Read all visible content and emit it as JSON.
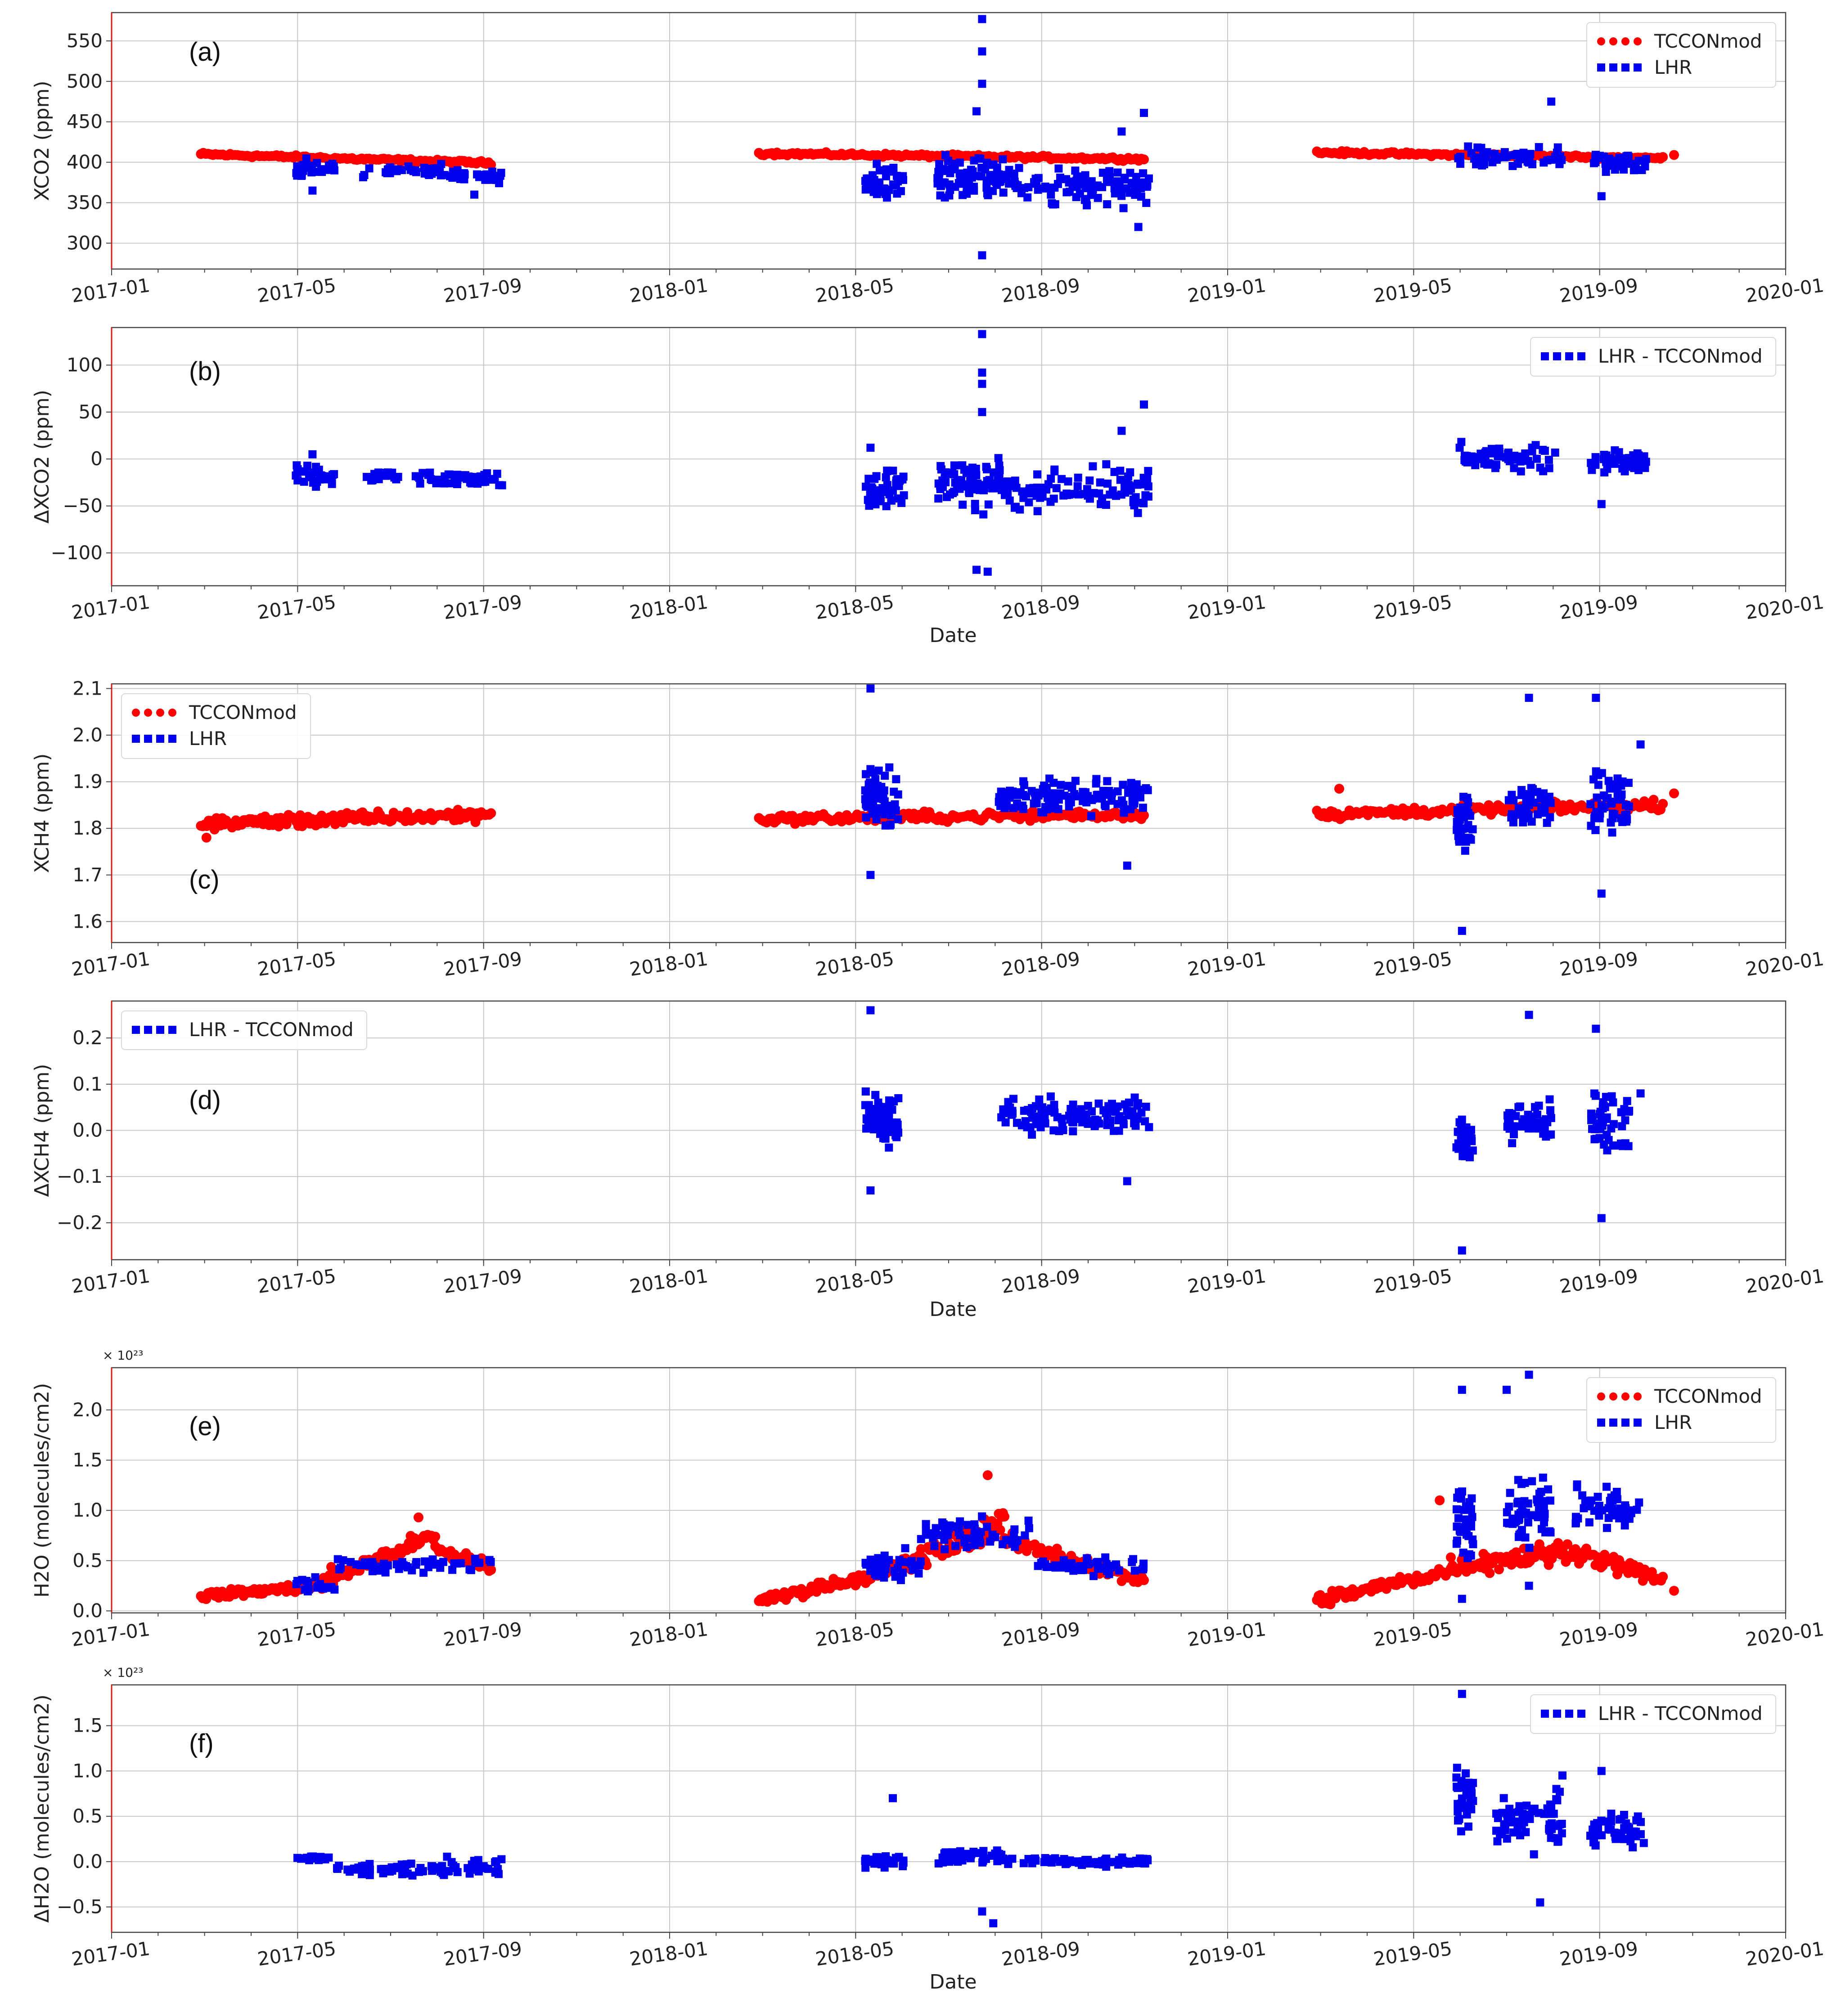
{
  "figure": {
    "colors": {
      "tccon": "#ff0000",
      "lhr": "#0000ee",
      "grid": "#c8c8c8",
      "axis": "#444444",
      "leftSpine": "#cc2222"
    },
    "x_ticks": [
      "2017-01",
      "2017-05",
      "2017-09",
      "2018-01",
      "2018-05",
      "2018-09",
      "2019-01",
      "2019-05",
      "2019-09",
      "2020-01"
    ],
    "x_axis_label": "Date"
  },
  "chart_data": [
    {
      "id": "a",
      "type": "scatter",
      "tag": "(a)",
      "ylabel": "XCO2 (ppm)",
      "ylim": [
        268,
        585
      ],
      "yticks": [
        300,
        350,
        400,
        450,
        500,
        550
      ],
      "ytick_labels": [
        "300",
        "350",
        "400",
        "450",
        "500",
        "550"
      ],
      "xlabel": "",
      "multiplier": "",
      "legend_position": "top-right",
      "series": [
        {
          "name": "TCCONmod",
          "marker": "circle",
          "color": "#ff0000",
          "segments": [
            {
              "start": 2017.16,
              "end": 2017.68,
              "y0": 410,
              "y1": 399,
              "jitter": 3,
              "count": 120
            },
            {
              "start": 2018.16,
              "end": 2018.85,
              "y0": 411,
              "y1": 404,
              "jitter": 3,
              "count": 150
            },
            {
              "start": 2019.16,
              "end": 2019.78,
              "y0": 412,
              "y1": 405,
              "jitter": 3,
              "count": 140
            }
          ],
          "points": [
            [
              2019.8,
              409
            ]
          ]
        },
        {
          "name": "LHR",
          "marker": "square",
          "color": "#0000ee",
          "clusters": [
            {
              "x0": 2017.33,
              "x1": 2017.4,
              "center": 392,
              "spread": 16,
              "count": 30
            },
            {
              "x0": 2017.45,
              "x1": 2017.62,
              "center": 389,
              "spread": 11,
              "count": 40
            },
            {
              "x0": 2017.6,
              "x1": 2017.7,
              "center": 383,
              "spread": 12,
              "count": 30
            },
            {
              "x0": 2018.35,
              "x1": 2018.42,
              "center": 375,
              "spread": 30,
              "count": 45
            },
            {
              "x0": 2018.48,
              "x1": 2018.6,
              "center": 380,
              "spread": 40,
              "count": 80
            },
            {
              "x0": 2018.6,
              "x1": 2018.86,
              "center": 370,
              "spread": 32,
              "count": 100
            },
            {
              "x0": 2019.41,
              "x1": 2019.6,
              "center": 405,
              "spread": 18,
              "count": 60
            },
            {
              "x0": 2019.65,
              "x1": 2019.75,
              "center": 400,
              "spread": 18,
              "count": 40
            }
          ],
          "points": [
            [
              2018.56,
              577
            ],
            [
              2018.56,
              537
            ],
            [
              2018.56,
              497
            ],
            [
              2018.55,
              463
            ],
            [
              2018.56,
              285
            ],
            [
              2018.85,
              461
            ],
            [
              2018.84,
              320
            ],
            [
              2018.81,
              438
            ],
            [
              2019.58,
              475
            ],
            [
              2019.67,
              358
            ],
            [
              2017.36,
              365
            ],
            [
              2017.65,
              360
            ]
          ]
        }
      ]
    },
    {
      "id": "b",
      "type": "scatter",
      "tag": "(b)",
      "ylabel": "ΔXCO2 (ppm)",
      "ylim": [
        -135,
        140
      ],
      "yticks": [
        -100,
        -50,
        0,
        50,
        100
      ],
      "ytick_labels": [
        "−100",
        "−50",
        "0",
        "50",
        "100"
      ],
      "xlabel": "Date",
      "multiplier": "",
      "legend_position": "top-right",
      "series": [
        {
          "name": "LHR - TCCONmod",
          "marker": "square",
          "color": "#0000ee",
          "clusters": [
            {
              "x0": 2017.33,
              "x1": 2017.4,
              "center": -18,
              "spread": 16,
              "count": 30
            },
            {
              "x0": 2017.45,
              "x1": 2017.62,
              "center": -18,
              "spread": 11,
              "count": 40
            },
            {
              "x0": 2017.6,
              "x1": 2017.7,
              "center": -22,
              "spread": 10,
              "count": 30
            },
            {
              "x0": 2018.35,
              "x1": 2018.42,
              "center": -33,
              "spread": 28,
              "count": 45
            },
            {
              "x0": 2018.48,
              "x1": 2018.6,
              "center": -25,
              "spread": 38,
              "count": 80
            },
            {
              "x0": 2018.6,
              "x1": 2018.86,
              "center": -32,
              "spread": 30,
              "count": 100
            },
            {
              "x0": 2019.41,
              "x1": 2019.6,
              "center": 2,
              "spread": 18,
              "count": 60
            },
            {
              "x0": 2019.65,
              "x1": 2019.75,
              "center": -3,
              "spread": 20,
              "count": 40
            }
          ],
          "points": [
            [
              2018.56,
              133
            ],
            [
              2018.56,
              92
            ],
            [
              2018.56,
              80
            ],
            [
              2018.56,
              50
            ],
            [
              2018.55,
              -118
            ],
            [
              2018.57,
              -120
            ],
            [
              2018.85,
              58
            ],
            [
              2018.81,
              30
            ],
            [
              2019.67,
              -48
            ],
            [
              2018.36,
              12
            ],
            [
              2017.36,
              5
            ]
          ]
        }
      ]
    },
    {
      "id": "c",
      "type": "scatter",
      "tag": "(c)",
      "ylabel": "XCH4 (ppm)",
      "ylim": [
        1.555,
        2.11
      ],
      "yticks": [
        1.6,
        1.7,
        1.8,
        1.9,
        2.0,
        2.1
      ],
      "ytick_labels": [
        "1.6",
        "1.7",
        "1.8",
        "1.9",
        "2.0",
        "2.1"
      ],
      "xlabel": "",
      "multiplier": "",
      "legend_position": "top-left",
      "series": [
        {
          "name": "TCCONmod",
          "marker": "circle",
          "color": "#ff0000",
          "segments": [
            {
              "start": 2017.16,
              "end": 2017.68,
              "y0": 1.81,
              "y1": 1.83,
              "jitter": 0.02,
              "count": 150
            },
            {
              "start": 2018.16,
              "end": 2018.85,
              "y0": 1.82,
              "y1": 1.83,
              "jitter": 0.015,
              "count": 150
            },
            {
              "start": 2019.16,
              "end": 2019.78,
              "y0": 1.83,
              "y1": 1.85,
              "jitter": 0.015,
              "count": 150
            }
          ],
          "points": [
            [
              2019.8,
              1.875
            ],
            [
              2017.17,
              1.78
            ],
            [
              2019.2,
              1.885
            ]
          ]
        },
        {
          "name": "LHR",
          "marker": "square",
          "color": "#0000ee",
          "clusters": [
            {
              "x0": 2018.35,
              "x1": 2018.41,
              "center": 1.86,
              "spread": 0.09,
              "count": 70
            },
            {
              "x0": 2018.59,
              "x1": 2018.86,
              "center": 1.87,
              "spread": 0.05,
              "count": 120
            },
            {
              "x0": 2019.41,
              "x1": 2019.44,
              "center": 1.82,
              "spread": 0.1,
              "count": 35
            },
            {
              "x0": 2019.5,
              "x1": 2019.58,
              "center": 1.85,
              "spread": 0.07,
              "count": 45
            },
            {
              "x0": 2019.65,
              "x1": 2019.72,
              "center": 1.86,
              "spread": 0.09,
              "count": 50
            }
          ],
          "points": [
            [
              2018.36,
              2.1
            ],
            [
              2018.36,
              1.7
            ],
            [
              2019.42,
              1.58
            ],
            [
              2019.54,
              2.08
            ],
            [
              2019.66,
              2.08
            ],
            [
              2019.67,
              1.66
            ],
            [
              2018.82,
              1.72
            ],
            [
              2019.74,
              1.98
            ]
          ]
        }
      ]
    },
    {
      "id": "d",
      "type": "scatter",
      "tag": "(d)",
      "ylabel": "ΔXCH4 (ppm)",
      "ylim": [
        -0.28,
        0.28
      ],
      "yticks": [
        -0.2,
        -0.1,
        0.0,
        0.1,
        0.2
      ],
      "ytick_labels": [
        "−0.2",
        "−0.1",
        "0.0",
        "0.1",
        "0.2"
      ],
      "xlabel": "Date",
      "multiplier": "",
      "legend_position": "top-left",
      "series": [
        {
          "name": "LHR - TCCONmod",
          "marker": "square",
          "color": "#0000ee",
          "clusters": [
            {
              "x0": 2018.35,
              "x1": 2018.41,
              "center": 0.02,
              "spread": 0.08,
              "count": 70
            },
            {
              "x0": 2018.59,
              "x1": 2018.86,
              "center": 0.03,
              "spread": 0.05,
              "count": 120
            },
            {
              "x0": 2019.41,
              "x1": 2019.44,
              "center": -0.02,
              "spread": 0.09,
              "count": 35
            },
            {
              "x0": 2019.5,
              "x1": 2019.58,
              "center": 0.02,
              "spread": 0.06,
              "count": 45
            },
            {
              "x0": 2019.65,
              "x1": 2019.72,
              "center": 0.02,
              "spread": 0.09,
              "count": 50
            }
          ],
          "points": [
            [
              2018.36,
              0.26
            ],
            [
              2018.36,
              -0.13
            ],
            [
              2019.42,
              -0.26
            ],
            [
              2019.54,
              0.25
            ],
            [
              2019.66,
              0.22
            ],
            [
              2019.67,
              -0.19
            ],
            [
              2018.82,
              -0.11
            ],
            [
              2019.74,
              0.08
            ]
          ]
        }
      ]
    },
    {
      "id": "e",
      "type": "scatter",
      "tag": "(e)",
      "ylabel": "H2O (molecules/cm2)",
      "ylim": [
        -0.02,
        2.42
      ],
      "yticks": [
        0.0,
        0.5,
        1.0,
        1.5,
        2.0
      ],
      "ytick_labels": [
        "0.0",
        "0.5",
        "1.0",
        "1.5",
        "2.0"
      ],
      "xlabel": "",
      "multiplier": "× 10²³",
      "legend_position": "top-right",
      "series": [
        {
          "name": "TCCONmod",
          "marker": "circle",
          "color": "#ff0000",
          "segments": [
            {
              "start": 2017.16,
              "end": 2017.38,
              "y0": 0.15,
              "y1": 0.25,
              "jitter": 0.06,
              "count": 70
            },
            {
              "start": 2017.38,
              "end": 2017.58,
              "y0": 0.3,
              "y1": 0.75,
              "jitter": 0.12,
              "count": 60
            },
            {
              "start": 2017.58,
              "end": 2017.68,
              "y0": 0.6,
              "y1": 0.45,
              "jitter": 0.1,
              "count": 30
            },
            {
              "start": 2018.16,
              "end": 2018.4,
              "y0": 0.1,
              "y1": 0.4,
              "jitter": 0.08,
              "count": 80
            },
            {
              "start": 2018.4,
              "end": 2018.6,
              "y0": 0.4,
              "y1": 0.9,
              "jitter": 0.18,
              "count": 80
            },
            {
              "start": 2018.6,
              "end": 2018.85,
              "y0": 0.7,
              "y1": 0.3,
              "jitter": 0.12,
              "count": 70
            },
            {
              "start": 2019.16,
              "end": 2019.4,
              "y0": 0.1,
              "y1": 0.4,
              "jitter": 0.1,
              "count": 80
            },
            {
              "start": 2019.4,
              "end": 2019.62,
              "y0": 0.45,
              "y1": 0.6,
              "jitter": 0.15,
              "count": 80
            },
            {
              "start": 2019.62,
              "end": 2019.78,
              "y0": 0.6,
              "y1": 0.3,
              "jitter": 0.12,
              "count": 50
            }
          ],
          "points": [
            [
              2019.8,
              0.2
            ],
            [
              2018.57,
              1.35
            ],
            [
              2017.55,
              0.93
            ],
            [
              2019.38,
              1.1
            ]
          ]
        },
        {
          "name": "LHR",
          "marker": "square",
          "color": "#0000ee",
          "clusters": [
            {
              "x0": 2017.33,
              "x1": 2017.4,
              "center": 0.25,
              "spread": 0.1,
              "count": 20
            },
            {
              "x0": 2017.4,
              "x1": 2017.68,
              "center": 0.45,
              "spread": 0.12,
              "count": 50
            },
            {
              "x0": 2018.35,
              "x1": 2018.45,
              "center": 0.45,
              "spread": 0.2,
              "count": 40
            },
            {
              "x0": 2018.45,
              "x1": 2018.65,
              "center": 0.75,
              "spread": 0.25,
              "count": 60
            },
            {
              "x0": 2018.65,
              "x1": 2018.86,
              "center": 0.45,
              "spread": 0.12,
              "count": 50
            },
            {
              "x0": 2019.41,
              "x1": 2019.44,
              "center": 0.9,
              "spread": 0.5,
              "count": 35
            },
            {
              "x0": 2019.5,
              "x1": 2019.58,
              "center": 1.0,
              "spread": 0.5,
              "count": 55
            },
            {
              "x0": 2019.62,
              "x1": 2019.75,
              "center": 1.0,
              "spread": 0.3,
              "count": 50
            }
          ],
          "points": [
            [
              2019.42,
              2.2
            ],
            [
              2019.54,
              2.35
            ],
            [
              2019.5,
              2.2
            ],
            [
              2019.42,
              0.12
            ],
            [
              2019.54,
              0.25
            ]
          ]
        }
      ]
    },
    {
      "id": "f",
      "type": "scatter",
      "tag": "(f)",
      "ylabel": "ΔH2O (molecules/cm2)",
      "ylim": [
        -0.78,
        1.95
      ],
      "yticks": [
        -0.5,
        0.0,
        0.5,
        1.0,
        1.5
      ],
      "ytick_labels": [
        "−0.5",
        "0.0",
        "0.5",
        "1.0",
        "1.5"
      ],
      "xlabel": "Date",
      "multiplier": "× 10²³",
      "legend_position": "top-right",
      "series": [
        {
          "name": "LHR - TCCONmod",
          "marker": "square",
          "color": "#0000ee",
          "clusters": [
            {
              "x0": 2017.32,
              "x1": 2017.39,
              "center": 0.04,
              "spread": 0.03,
              "count": 20
            },
            {
              "x0": 2017.4,
              "x1": 2017.6,
              "center": -0.08,
              "spread": 0.13,
              "count": 50
            },
            {
              "x0": 2017.6,
              "x1": 2017.7,
              "center": -0.05,
              "spread": 0.12,
              "count": 30
            },
            {
              "x0": 2018.35,
              "x1": 2018.42,
              "center": 0.0,
              "spread": 0.08,
              "count": 30
            },
            {
              "x0": 2018.48,
              "x1": 2018.6,
              "center": 0.05,
              "spread": 0.12,
              "count": 50
            },
            {
              "x0": 2018.6,
              "x1": 2018.86,
              "center": 0.0,
              "spread": 0.06,
              "count": 70
            },
            {
              "x0": 2019.41,
              "x1": 2019.44,
              "center": 0.7,
              "spread": 0.5,
              "count": 35
            },
            {
              "x0": 2019.48,
              "x1": 2019.6,
              "center": 0.45,
              "spread": 0.4,
              "count": 60
            },
            {
              "x0": 2019.65,
              "x1": 2019.75,
              "center": 0.35,
              "spread": 0.3,
              "count": 45
            }
          ],
          "points": [
            [
              2018.4,
              0.7
            ],
            [
              2018.58,
              -0.68
            ],
            [
              2018.56,
              -0.55
            ],
            [
              2019.42,
              1.85
            ],
            [
              2019.56,
              -0.45
            ],
            [
              2019.6,
              0.95
            ],
            [
              2019.67,
              1.0
            ]
          ]
        }
      ]
    }
  ]
}
